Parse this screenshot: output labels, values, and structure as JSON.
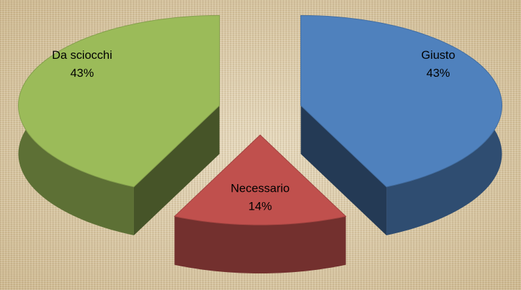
{
  "chart_data": {
    "type": "pie3d",
    "categories": [
      "Giusto",
      "Necessario",
      "Da sciocchi"
    ],
    "values": [
      43,
      14,
      43
    ],
    "value_labels": [
      "43%",
      "14%",
      "43%"
    ],
    "colors": [
      "#4f81bd",
      "#c0504d",
      "#9bbb59"
    ]
  }
}
